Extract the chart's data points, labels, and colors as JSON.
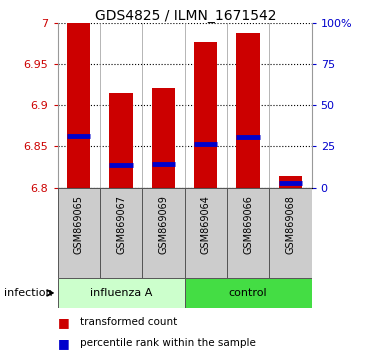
{
  "title": "GDS4825 / ILMN_1671542",
  "samples": [
    "GSM869065",
    "GSM869067",
    "GSM869069",
    "GSM869064",
    "GSM869066",
    "GSM869068"
  ],
  "groups": [
    "influenza A",
    "influenza A",
    "influenza A",
    "control",
    "control",
    "control"
  ],
  "bar_bottom": 6.8,
  "transformed_counts": [
    7.0,
    6.915,
    6.921,
    6.977,
    6.988,
    6.814
  ],
  "percentile_values": [
    6.863,
    6.828,
    6.829,
    6.853,
    6.862,
    6.806
  ],
  "ylim": [
    6.8,
    7.0
  ],
  "yticks": [
    6.8,
    6.85,
    6.9,
    6.95,
    7.0
  ],
  "ytick_labels": [
    "6.8",
    "6.85",
    "6.9",
    "6.95",
    "7"
  ],
  "right_yticks": [
    0,
    25,
    50,
    75,
    100
  ],
  "right_ytick_labels": [
    "0",
    "25",
    "50",
    "75",
    "100%"
  ],
  "bar_color": "#CC0000",
  "blue_color": "#0000CC",
  "red_color": "#CC0000",
  "blue_label_color": "#0000CC",
  "bar_width": 0.55,
  "light_green": "#CCFFCC",
  "dark_green": "#44DD44",
  "gray_box": "#CCCCCC",
  "group_border_color": "#333333",
  "sample_box_color": "#CCCCCC"
}
